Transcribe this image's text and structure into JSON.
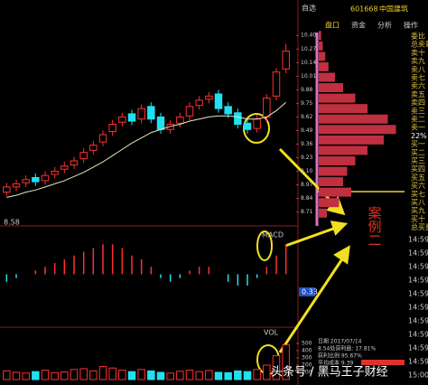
{
  "header": {
    "code": "601668",
    "name": "中国建筑",
    "fav": "自选"
  },
  "tabs": [
    "盘口",
    "资金",
    "分析",
    "操作"
  ],
  "order_labels": [
    "委比",
    "总卖量",
    "卖十",
    "卖九",
    "卖八",
    "卖七",
    "卖六",
    "卖五",
    "卖四",
    "卖三",
    "卖二",
    "卖一",
    "22%",
    "买一",
    "买二",
    "买三",
    "买四",
    "买五",
    "买六",
    "买七",
    "买八",
    "买九",
    "买十",
    "总买量"
  ],
  "times": [
    "14:59",
    "14:59",
    "14:59",
    "14:59",
    "14:59",
    "14:59",
    "14:59",
    "14:59",
    "14:59",
    "14:59",
    "15:00"
  ],
  "chip_info": [
    "日期 2017/07/14",
    "8.54处获利盘: 17.81%",
    "获利比例 95.67%",
    "平均成本 9.39"
  ],
  "low_label": "8.58",
  "macd_label": "MACD",
  "vol_label": "VOL",
  "macd_value": "0.33",
  "annotation": "案例二",
  "watermark": "头条号 / 黑马王子财经",
  "chart_data": [
    {
      "type": "candlestick",
      "ylim": [
        8.62,
        10.48
      ],
      "yticks": [
        {
          "value": 10.4,
          "label": "10.40"
        },
        10.27,
        10.14,
        10.01,
        9.88,
        9.75,
        9.62,
        9.49,
        9.36,
        9.23,
        {
          "value": 9.1,
          "label": "9.10"
        },
        8.97,
        8.84,
        8.71
      ],
      "open": [
        8.9,
        8.95,
        8.99,
        9.04,
        9.01,
        9.07,
        9.12,
        9.16,
        9.22,
        9.3,
        9.38,
        9.48,
        9.57,
        9.65,
        9.6,
        9.72,
        9.62,
        9.5,
        9.56,
        9.63,
        9.73,
        9.79,
        9.84,
        9.72,
        9.66,
        9.56,
        9.51,
        9.62,
        9.82,
        10.08
      ],
      "high": [
        8.99,
        9.02,
        9.06,
        9.08,
        9.1,
        9.14,
        9.19,
        9.24,
        9.32,
        9.39,
        9.49,
        9.59,
        9.66,
        9.69,
        9.74,
        9.76,
        9.66,
        9.59,
        9.66,
        9.76,
        9.82,
        9.86,
        9.88,
        9.76,
        9.7,
        9.6,
        9.64,
        9.84,
        10.09,
        10.32
      ],
      "low": [
        8.86,
        8.91,
        8.95,
        8.96,
        8.97,
        9.03,
        9.08,
        9.12,
        9.18,
        9.26,
        9.34,
        9.44,
        9.53,
        9.54,
        9.56,
        9.56,
        9.46,
        9.46,
        9.52,
        9.59,
        9.69,
        9.75,
        9.66,
        9.61,
        9.51,
        9.46,
        9.47,
        9.58,
        9.78,
        10.04
      ],
      "close": [
        8.95,
        8.98,
        9.02,
        9.0,
        9.06,
        9.1,
        9.15,
        9.2,
        9.28,
        9.35,
        9.45,
        9.55,
        9.62,
        9.58,
        9.7,
        9.6,
        9.5,
        9.55,
        9.62,
        9.72,
        9.78,
        9.82,
        9.7,
        9.65,
        9.55,
        9.5,
        9.6,
        9.8,
        10.05,
        10.25
      ],
      "up_color": "#ff3030",
      "down_color": "#20e0f0",
      "ma": {
        "color": "#e8e8c0",
        "values": [
          8.85,
          8.87,
          8.9,
          8.92,
          8.95,
          8.98,
          9.01,
          9.05,
          9.09,
          9.14,
          9.19,
          9.25,
          9.31,
          9.37,
          9.42,
          9.47,
          9.5,
          9.53,
          9.55,
          9.58,
          9.6,
          9.62,
          9.63,
          9.63,
          9.62,
          9.6,
          9.6,
          9.62,
          9.68,
          9.76
        ]
      }
    },
    {
      "type": "bar",
      "ylim": [
        -0.1,
        0.1
      ],
      "values": [
        -0.02,
        -0.01,
        0.0,
        0.01,
        0.02,
        0.03,
        0.04,
        0.05,
        0.06,
        0.07,
        0.08,
        0.08,
        0.07,
        0.05,
        0.04,
        0.02,
        -0.01,
        -0.02,
        -0.01,
        0.01,
        0.02,
        0.02,
        0.0,
        -0.02,
        -0.03,
        -0.03,
        -0.01,
        0.02,
        0.05,
        0.08
      ],
      "up_color": "#ff3030",
      "down_color": "#20e0f0"
    },
    {
      "type": "bar",
      "ylim": [
        0,
        600
      ],
      "yticks": [
        100,
        200,
        300,
        400,
        500
      ],
      "values": [
        120,
        100,
        90,
        110,
        130,
        95,
        105,
        140,
        150,
        120,
        180,
        160,
        130,
        110,
        140,
        120,
        100,
        90,
        115,
        130,
        110,
        125,
        100,
        95,
        120,
        110,
        140,
        200,
        330,
        480
      ],
      "up_color": "#ff3030",
      "down_color": "#20e0f0"
    },
    {
      "type": "hbar",
      "color": "#c03040",
      "ylim": [
        8.62,
        10.48
      ],
      "xlim": [
        0,
        100
      ],
      "categories": [
        8.7,
        8.8,
        8.9,
        9.0,
        9.1,
        9.2,
        9.3,
        9.4,
        9.5,
        9.6,
        9.7,
        9.8,
        9.9,
        10.0,
        10.1,
        10.2,
        10.3,
        10.4
      ],
      "values": [
        10,
        25,
        40,
        30,
        35,
        45,
        60,
        80,
        95,
        85,
        60,
        45,
        30,
        20,
        12,
        8,
        5,
        3
      ]
    }
  ]
}
